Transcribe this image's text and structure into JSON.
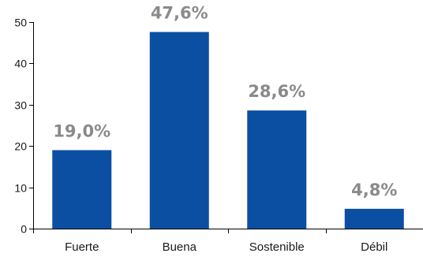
{
  "chart_data": {
    "type": "bar",
    "categories": [
      "Fuerte",
      "Buena",
      "Sostenible",
      "Débil"
    ],
    "values": [
      19.0,
      47.6,
      28.6,
      4.8
    ],
    "data_labels": [
      "19,0%",
      "47,6%",
      "28,6%",
      "4,8%"
    ],
    "ylim": [
      0,
      50
    ],
    "yticks": [
      0,
      10,
      20,
      30,
      40,
      50
    ],
    "ytick_labels": [
      "0",
      "10",
      "20",
      "30",
      "40",
      "50"
    ],
    "grid": false,
    "legend": "none",
    "bar_color": "#0b4fa3",
    "label_color": "#8a8a8a"
  }
}
